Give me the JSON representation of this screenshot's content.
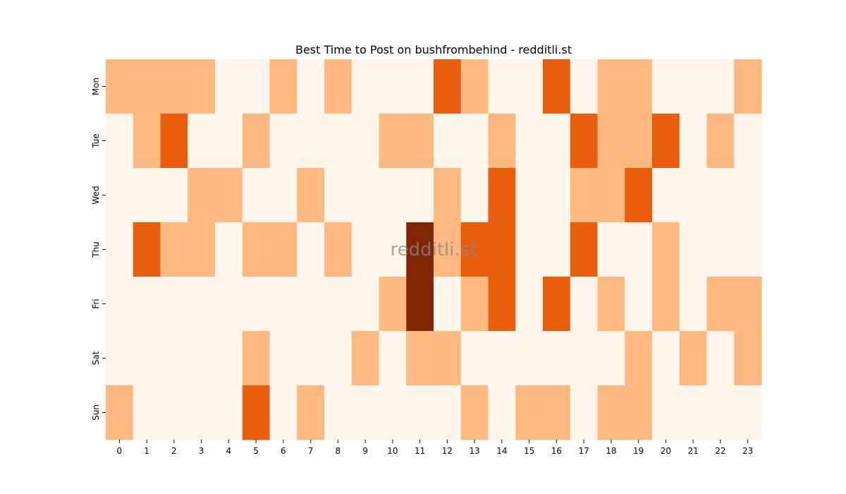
{
  "chart_data": {
    "type": "heatmap",
    "title": "Best Time to Post on bushfrombehind - redditli.st",
    "watermark": "redditli.st",
    "xlabel": "",
    "ylabel": "",
    "x_categories": [
      "0",
      "1",
      "2",
      "3",
      "4",
      "5",
      "6",
      "7",
      "8",
      "9",
      "10",
      "11",
      "12",
      "13",
      "14",
      "15",
      "16",
      "17",
      "18",
      "19",
      "20",
      "21",
      "22",
      "23"
    ],
    "y_categories": [
      "Mon",
      "Tue",
      "Wed",
      "Thu",
      "Fri",
      "Sat",
      "Sun"
    ],
    "values": [
      [
        1,
        1,
        1,
        1,
        0,
        0,
        1,
        0,
        1,
        0,
        0,
        0,
        2,
        1,
        0,
        0,
        2,
        0,
        1,
        1,
        0,
        0,
        0,
        1
      ],
      [
        0,
        1,
        2,
        0,
        0,
        1,
        0,
        0,
        0,
        0,
        1,
        1,
        0,
        0,
        1,
        0,
        0,
        2,
        1,
        1,
        2,
        0,
        1,
        0
      ],
      [
        0,
        0,
        0,
        1,
        1,
        0,
        0,
        1,
        0,
        0,
        0,
        0,
        1,
        0,
        2,
        0,
        0,
        1,
        1,
        2,
        0,
        0,
        0,
        0
      ],
      [
        0,
        2,
        1,
        1,
        0,
        1,
        1,
        0,
        1,
        0,
        0,
        3,
        1,
        2,
        2,
        0,
        0,
        2,
        0,
        0,
        1,
        0,
        0,
        0
      ],
      [
        0,
        0,
        0,
        0,
        0,
        0,
        0,
        0,
        0,
        0,
        1,
        3,
        0,
        1,
        2,
        0,
        2,
        0,
        1,
        0,
        1,
        0,
        1,
        1
      ],
      [
        0,
        0,
        0,
        0,
        0,
        1,
        0,
        0,
        0,
        1,
        0,
        1,
        1,
        0,
        0,
        0,
        0,
        0,
        0,
        1,
        0,
        1,
        0,
        1
      ],
      [
        1,
        0,
        0,
        0,
        0,
        2,
        0,
        1,
        0,
        0,
        0,
        0,
        0,
        1,
        0,
        1,
        1,
        0,
        1,
        1,
        0,
        0,
        0,
        0
      ]
    ],
    "value_range": [
      0,
      3
    ],
    "colormap": [
      "#fff5eb",
      "#fdb97f",
      "#e95e0d",
      "#7f2704"
    ],
    "colorbar": false,
    "grid": false
  }
}
